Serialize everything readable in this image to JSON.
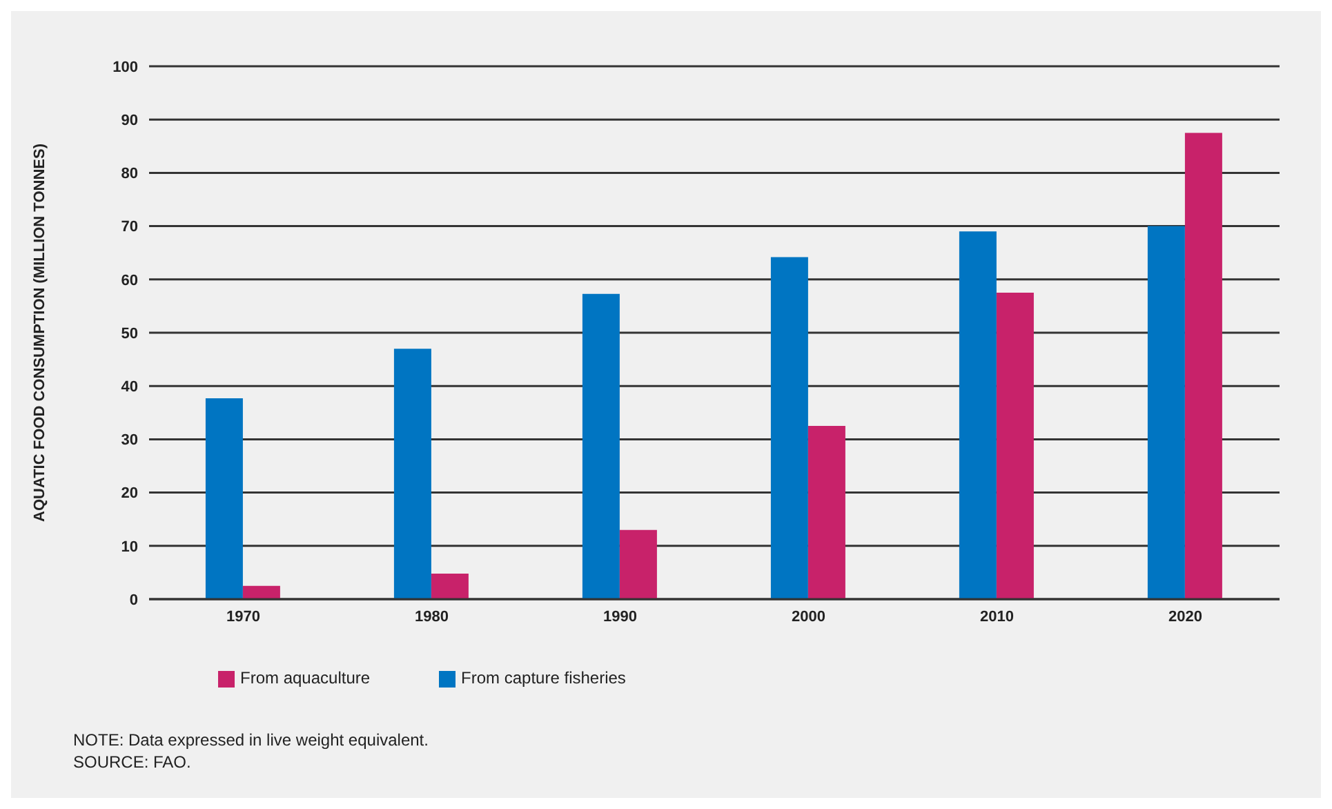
{
  "chart_data": {
    "type": "bar",
    "ylabel": "AQUATIC FOOD CONSUMPTION (MILLION TONNES)",
    "categories": [
      "1970",
      "1980",
      "1990",
      "2000",
      "2010",
      "2020"
    ],
    "series": [
      {
        "name": "From capture fisheries",
        "color": "#0075c2",
        "values": [
          37.7,
          47,
          57.3,
          64.2,
          69,
          70
        ]
      },
      {
        "name": "From aquaculture",
        "color": "#c8226a",
        "values": [
          2.5,
          4.8,
          13,
          32.5,
          57.5,
          87.5
        ]
      }
    ],
    "ylim": [
      0,
      100
    ],
    "yticks": [
      0,
      10,
      20,
      30,
      40,
      50,
      60,
      70,
      80,
      90,
      100
    ],
    "grid": "y",
    "legend": "bottom left",
    "annotations": [
      "NOTE: Data expressed in live weight equivalent.",
      "SOURCE: FAO."
    ]
  }
}
